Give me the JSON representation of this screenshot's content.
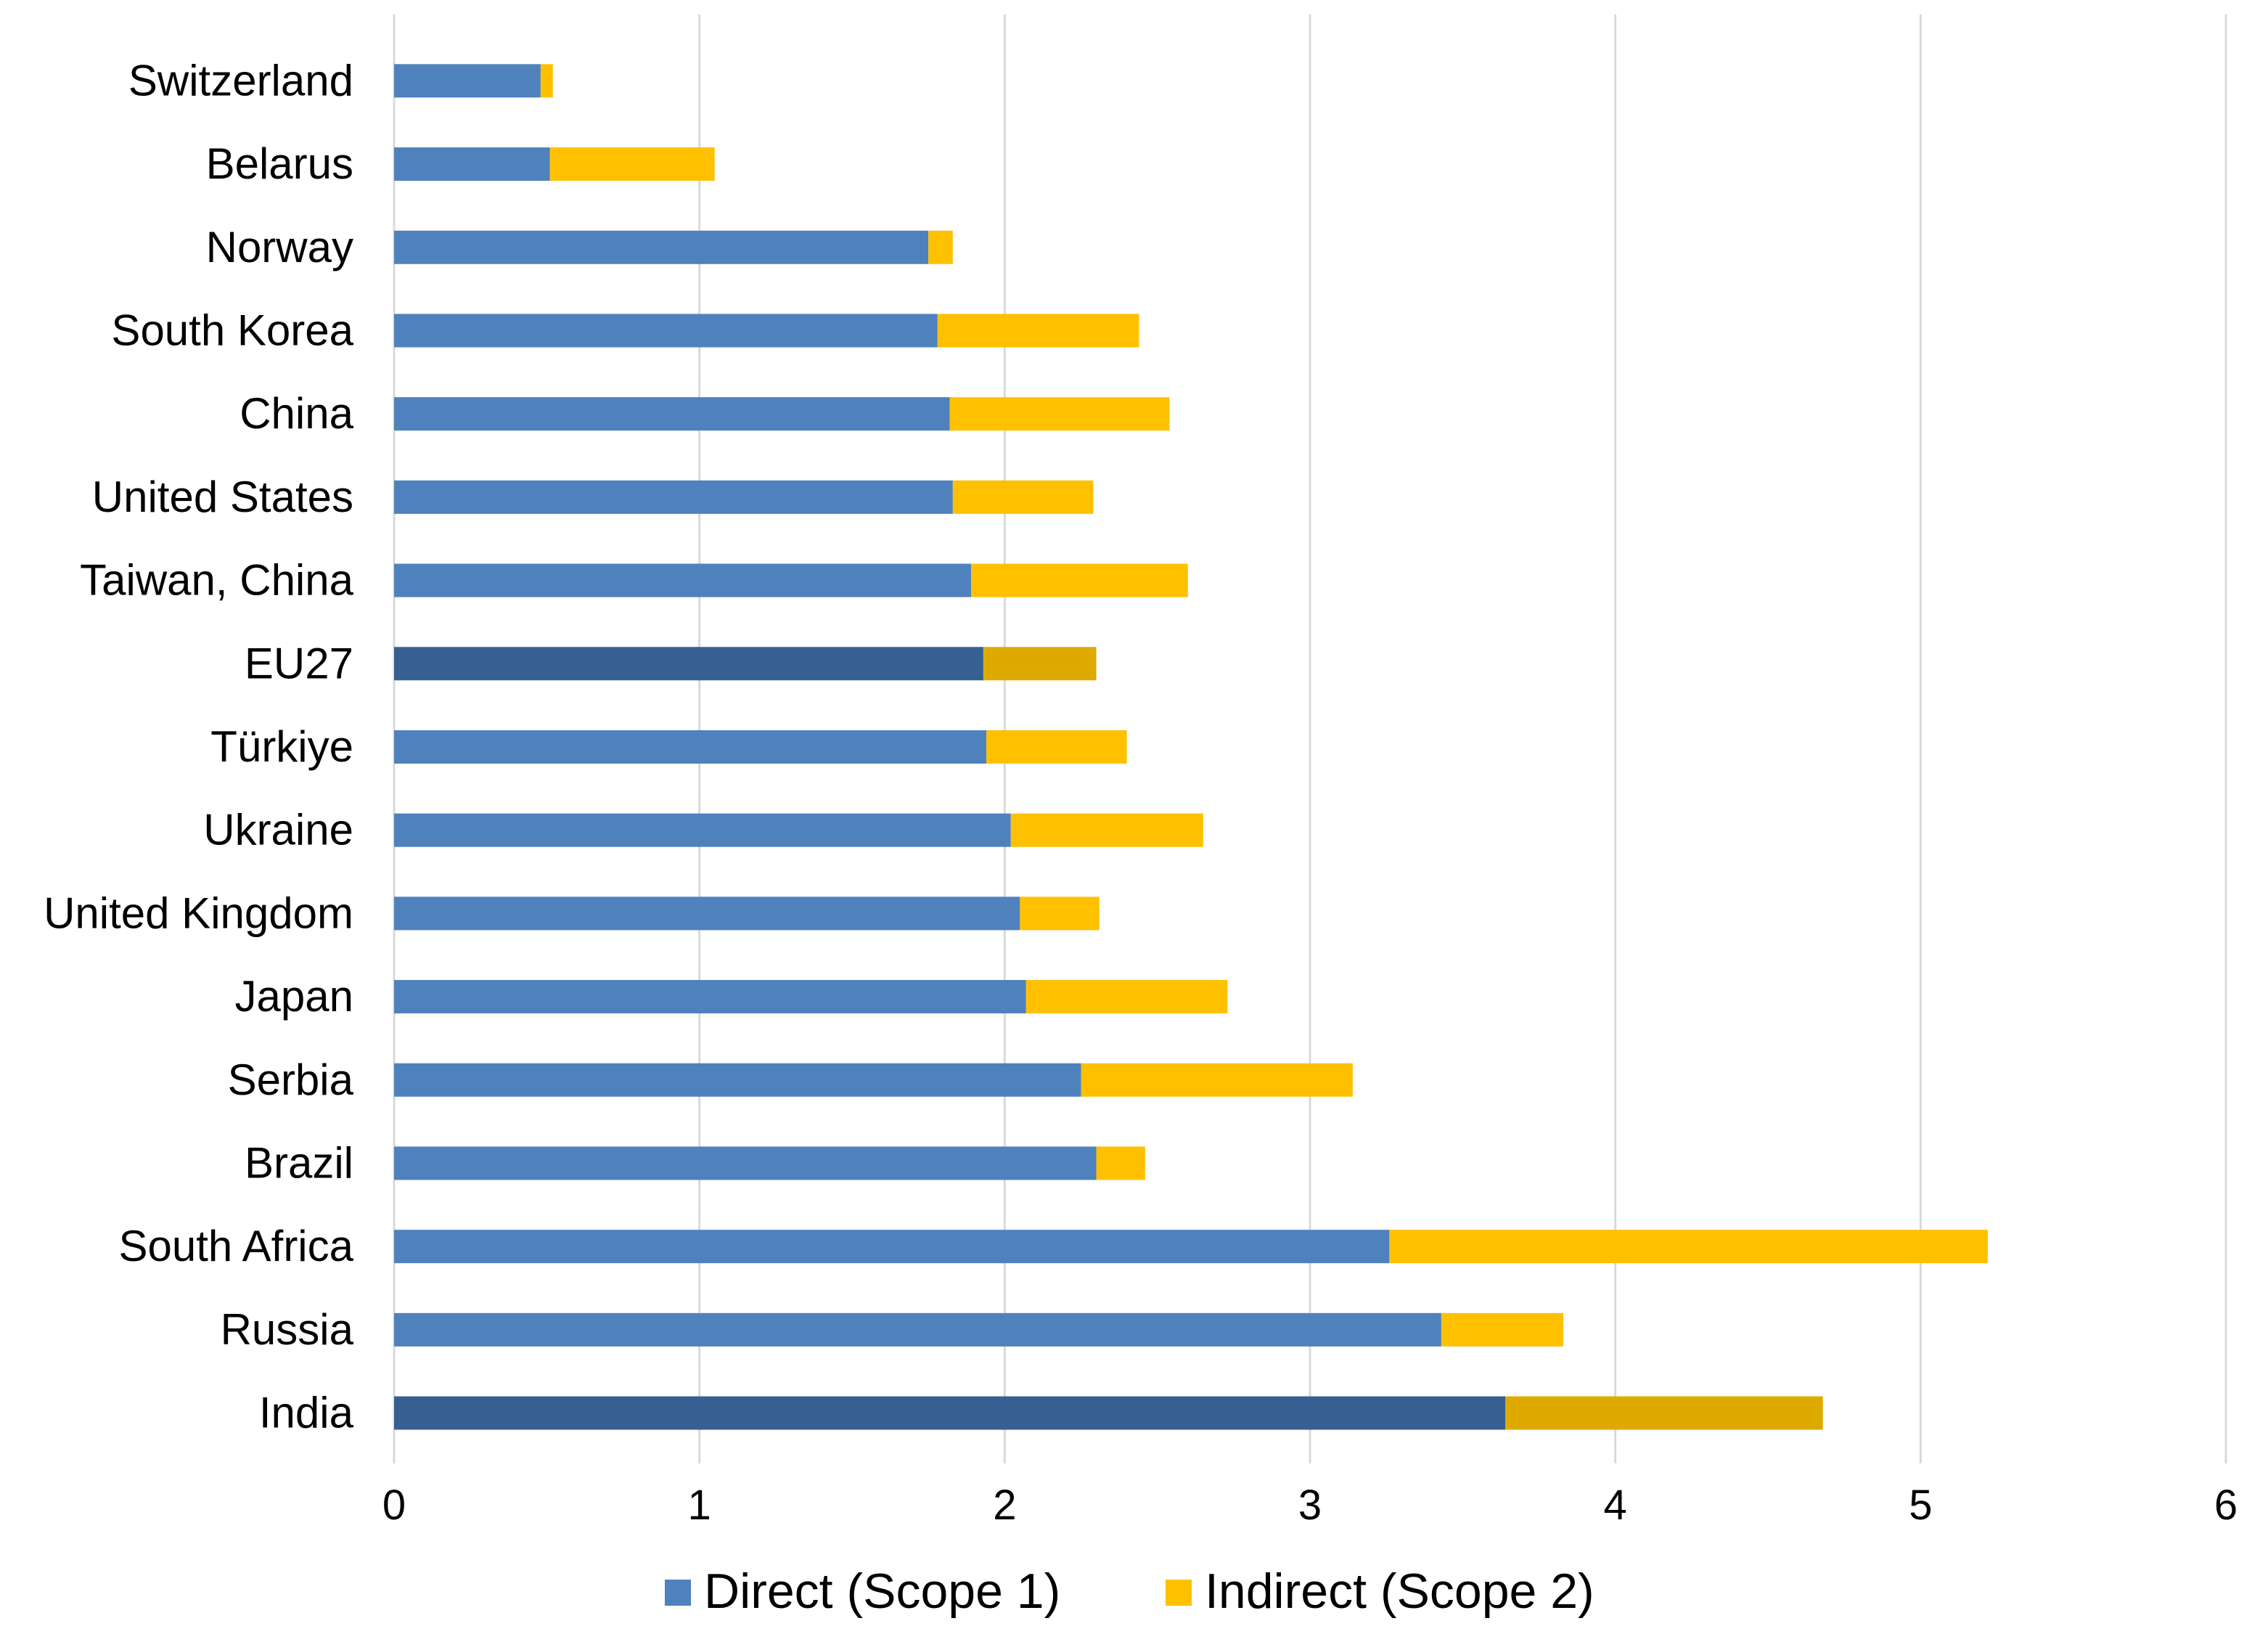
{
  "chart_data": {
    "type": "bar",
    "orientation": "horizontal",
    "stacked": true,
    "categories": [
      "Switzerland",
      "Belarus",
      "Norway",
      "South Korea",
      "China",
      "United States",
      "Taiwan, China",
      "EU27",
      "Türkiye",
      "Ukraine",
      "United Kingdom",
      "Japan",
      "Serbia",
      "Brazil",
      "South Africa",
      "Russia",
      "India"
    ],
    "series": [
      {
        "name": "Direct (Scope 1)",
        "color": "#4F81BD",
        "values": [
          0.48,
          0.51,
          1.75,
          1.78,
          1.82,
          1.83,
          1.89,
          1.93,
          1.94,
          2.02,
          2.05,
          2.07,
          2.25,
          2.3,
          3.26,
          3.43,
          3.64
        ]
      },
      {
        "name": "Indirect (Scope 2)",
        "color": "#FFC000",
        "values": [
          0.04,
          0.54,
          0.08,
          0.66,
          0.72,
          0.46,
          0.71,
          0.37,
          0.46,
          0.63,
          0.26,
          0.66,
          0.89,
          0.16,
          1.96,
          0.4,
          1.04
        ]
      }
    ],
    "highlighted_categories": [
      "EU27",
      "India"
    ],
    "highlight_colors": {
      "Direct (Scope 1)": "#376092",
      "Indirect (Scope 2)": "#DEAA00"
    },
    "title": "",
    "xlabel": "",
    "ylabel": "",
    "xlim": [
      0,
      6
    ],
    "xticks": [
      "0",
      "1",
      "2",
      "3",
      "4",
      "5",
      "6"
    ],
    "grid": "vertical",
    "legend_position": "bottom"
  }
}
